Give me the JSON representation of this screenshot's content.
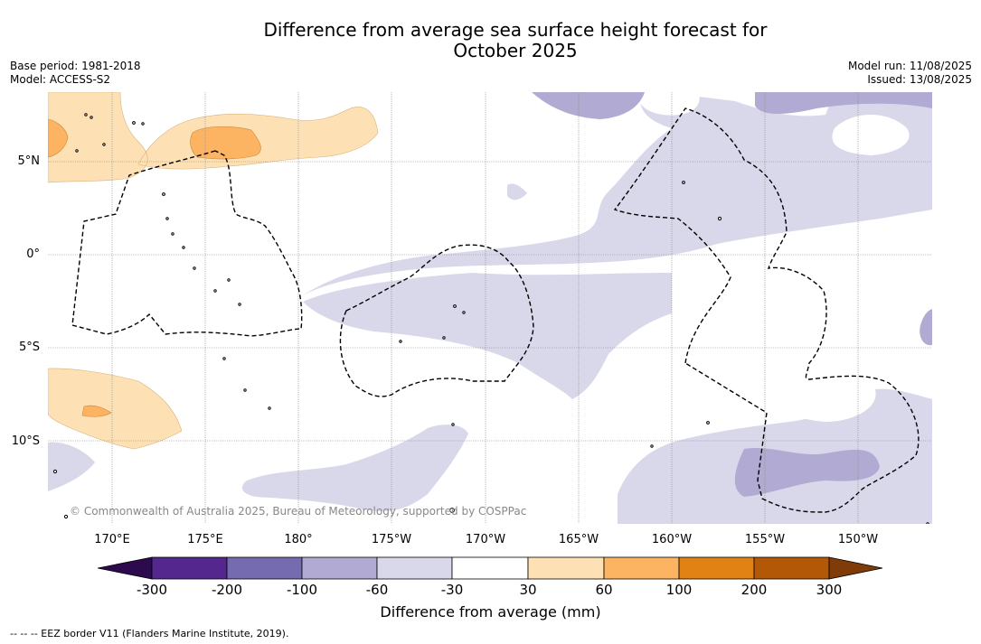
{
  "title_line1": "Difference from average sea surface height forecast for",
  "title_line2": "October 2025",
  "meta": {
    "base_period": "Base period: 1981-2018",
    "model": "Model: ACCESS-S2",
    "model_run": "Model run: 11/08/2025",
    "issued": "Issued: 13/08/2025"
  },
  "map": {
    "lat_labels": [
      "5°N",
      "0°",
      "5°S",
      "10°S"
    ],
    "lon_labels": [
      "170°E",
      "175°E",
      "180°",
      "175°W",
      "170°W",
      "165°W",
      "160°W",
      "155°W",
      "150°W"
    ],
    "attribution": "© Commonwealth of Australia 2025, Bureau of Meteorology, supported by COSPPac"
  },
  "colorbar": {
    "ticks": [
      "-300",
      "-200",
      "-100",
      "-60",
      "-30",
      "30",
      "60",
      "100",
      "200",
      "300"
    ],
    "colors": {
      "under": "#2d0a4e",
      "b1": "#54278f",
      "b2": "#756bb1",
      "b3": "#b1aad3",
      "b4": "#d8d8ea",
      "b5": "#ffffff",
      "b6": "#fde1b5",
      "b7": "#fdb462",
      "b8": "#e08214",
      "b9": "#b35806",
      "over": "#7f3b08"
    },
    "label": "Difference from average (mm)"
  },
  "legend_text": "--  --  -- EEZ border V11 (Flanders Marine Institute, 2019)."
}
